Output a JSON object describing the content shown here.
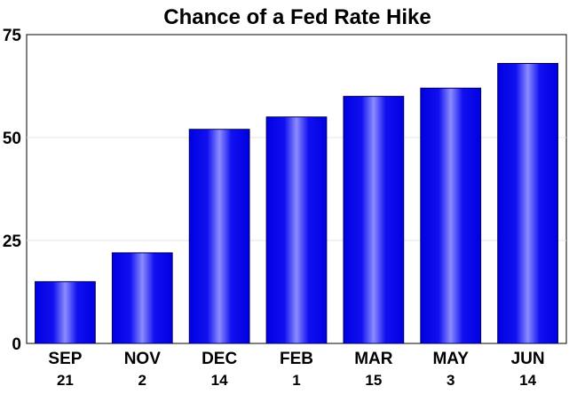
{
  "chart_data": {
    "type": "bar",
    "title": "Chance of a Fed Rate Hike",
    "xlabel": "",
    "ylabel": "",
    "categories": [
      "SEP",
      "NOV",
      "DEC",
      "FEB",
      "MAR",
      "MAY",
      "JUN"
    ],
    "category_sublabels": [
      "21",
      "2",
      "14",
      "1",
      "15",
      "3",
      "14"
    ],
    "values": [
      15,
      22,
      52,
      55,
      60,
      62,
      68
    ],
    "ylim": [
      0,
      75
    ],
    "yticks": [
      0,
      25,
      50,
      75
    ],
    "grid": true,
    "legend": "none",
    "colors": {
      "bar_edge": "#00005a",
      "bar_dark": "#0000e0",
      "bar_light": "#8c8cff",
      "grid": "#e4e4e4"
    }
  }
}
